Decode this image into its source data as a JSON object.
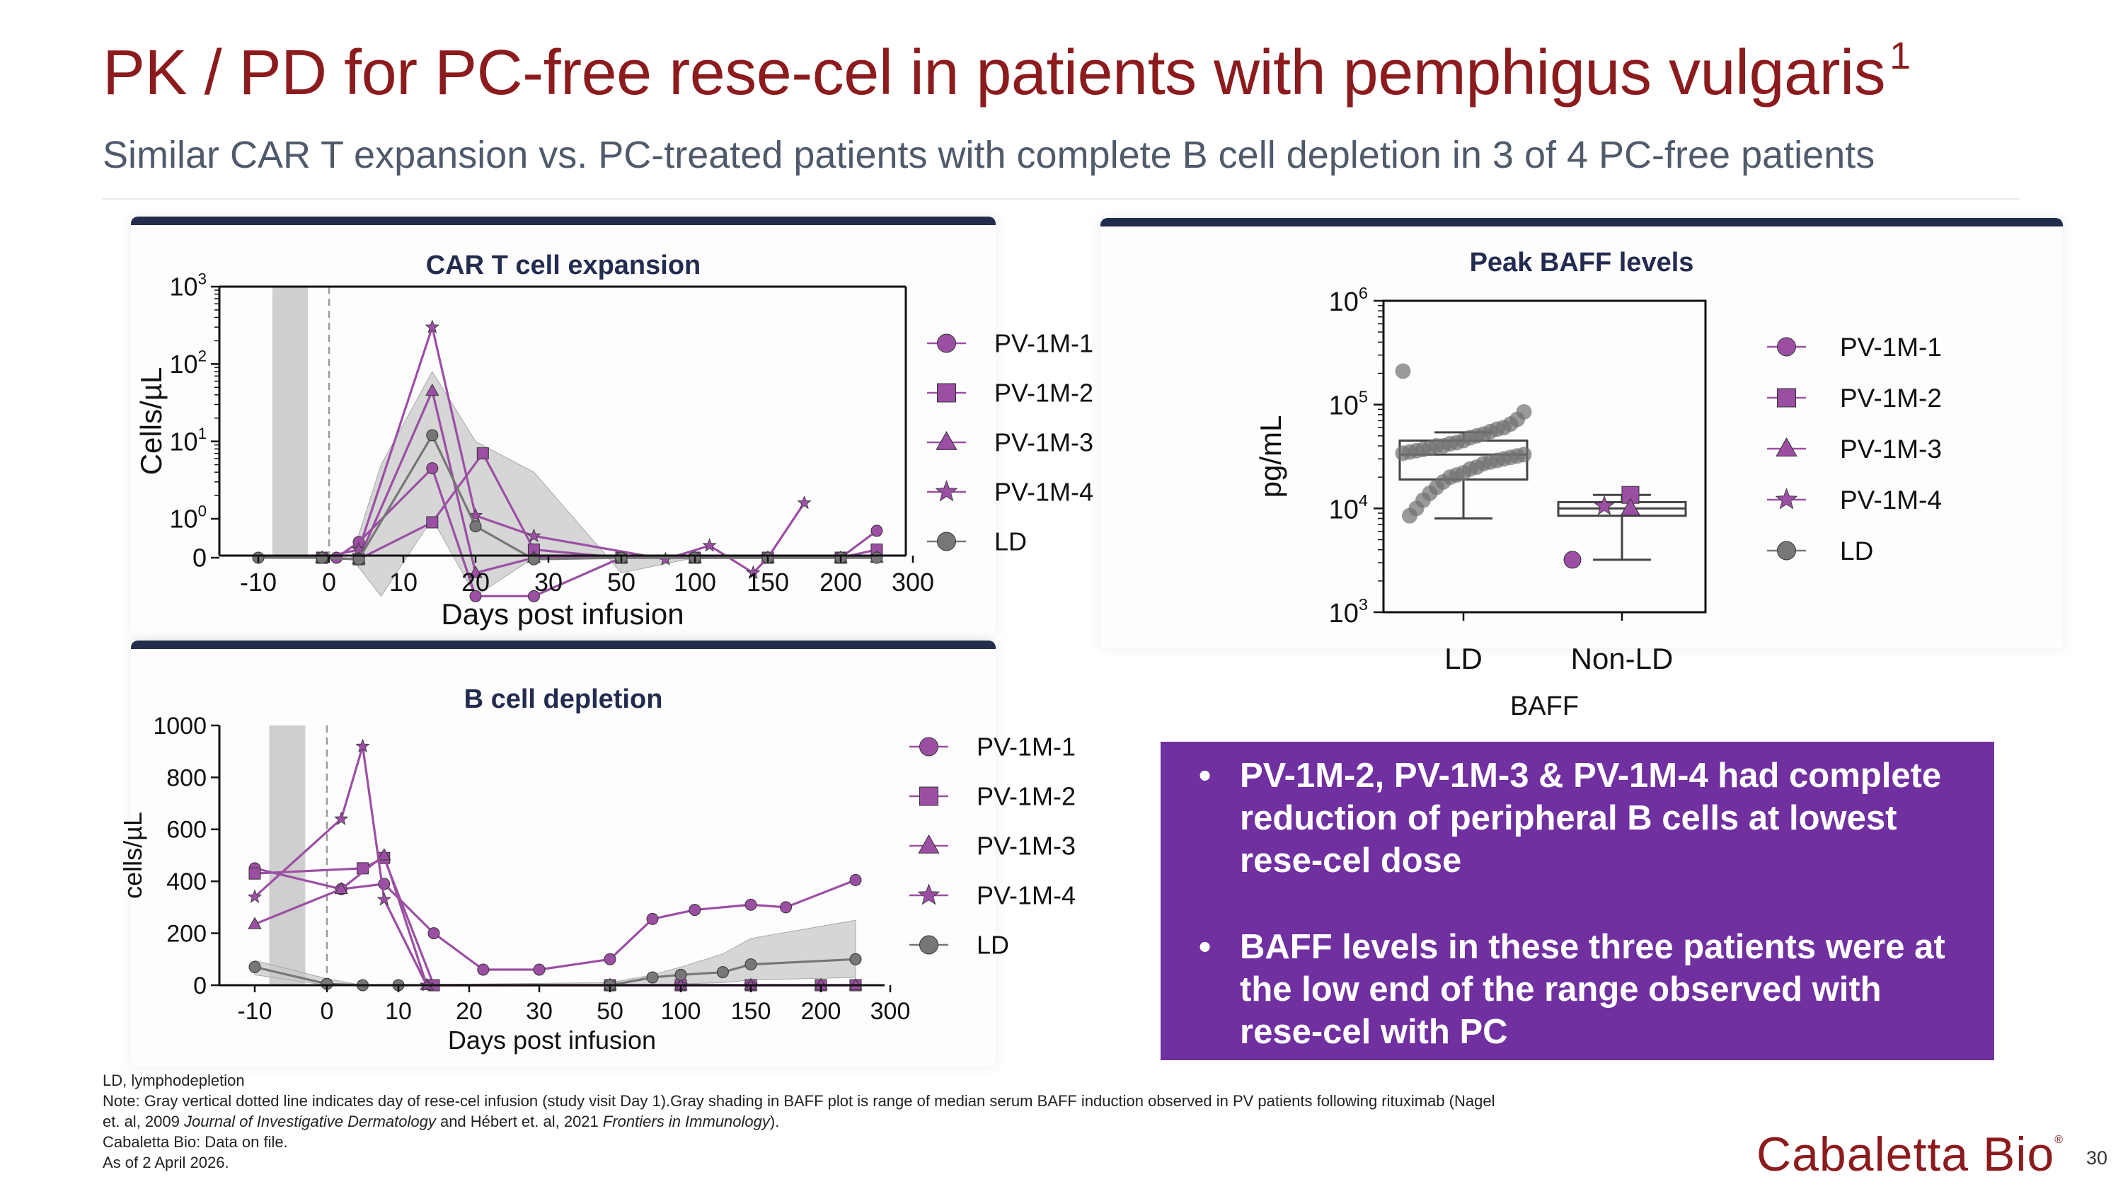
{
  "slide": {
    "title": "PK / PD for PC-free rese-cel in patients with pemphigus vulgaris",
    "title_superscript": "1",
    "subtitle": "Similar CAR T expansion vs. PC-treated patients with complete B cell depletion in 3 of 4 PC-free patients",
    "page_number": "30"
  },
  "logo": {
    "text": "Cabaletta Bio",
    "mark": "®"
  },
  "callout": {
    "bullet": "•",
    "points": [
      "PV-1M-2, PV-1M-3 & PV-1M-4 had complete reduction of peripheral B cells at lowest rese-cel dose",
      "BAFF levels in these three patients were at the low end of the range observed with rese-cel with PC"
    ]
  },
  "footnotes": {
    "line1": "LD, lymphodepletion",
    "line2": "Note: Gray vertical dotted line indicates day of rese-cel infusion (study visit Day 1).Gray shading in BAFF plot is range of median serum BAFF induction observed in PV patients following rituximab (Nagel",
    "line3_a": "et. al, 2009 ",
    "line3_b": "Journal of Investigative Dermatology",
    "line3_c": " and Hébert et. al, 2021 ",
    "line3_d": "Frontiers in Immunology",
    "line3_e": ").",
    "line4": "Cabaletta Bio: Data on file.",
    "line5": "As of 2 April 2026."
  },
  "colors": {
    "title": "#8c1b1e",
    "panel_border": "#222c4c",
    "callout": "#7030a0",
    "purple_series": "#9b4fa3",
    "ld_series": "#777777",
    "shade": "#c8c8c8"
  },
  "chart_data": [
    {
      "type": "line",
      "title": "CAR T cell expansion",
      "xlabel": "Days post infusion",
      "ylabel": "Cells/µL",
      "x_ticks": [
        "-10",
        "0",
        "10",
        "20",
        "30",
        "50",
        "100",
        "150",
        "200",
        "300"
      ],
      "y_ticks": [
        {
          "v": 0,
          "label": "0"
        },
        {
          "v": 1,
          "label": "10",
          "exp": "0"
        },
        {
          "v": 10,
          "label": "10",
          "exp": "1"
        },
        {
          "v": 100,
          "label": "10",
          "exp": "2"
        },
        {
          "v": 1000,
          "label": "10",
          "exp": "3"
        }
      ],
      "yscale": "log (0 shown at bottom)",
      "ylim": [
        0,
        1000
      ],
      "infusion_day": 0,
      "ld_window": [
        -8,
        -3
      ],
      "legend": [
        "PV-1M-1",
        "PV-1M-2",
        "PV-1M-3",
        "PV-1M-4",
        "LD"
      ],
      "series": [
        {
          "name": "PV-1M-1",
          "marker": "circle",
          "points": [
            [
              1,
              0
            ],
            [
              4,
              0.5
            ],
            [
              14,
              4.5
            ],
            [
              20,
              0.1
            ],
            [
              28,
              0.1
            ],
            [
              50,
              0
            ],
            [
              100,
              0
            ],
            [
              150,
              0
            ],
            [
              200,
              0
            ],
            [
              250,
              0.7
            ]
          ]
        },
        {
          "name": "PV-1M-2",
          "marker": "square",
          "points": [
            [
              -1,
              0
            ],
            [
              4,
              0.3
            ],
            [
              14,
              0.9
            ],
            [
              21,
              7
            ],
            [
              28,
              0.4
            ],
            [
              50,
              0
            ],
            [
              100,
              0
            ],
            [
              150,
              0
            ],
            [
              200,
              0
            ],
            [
              250,
              0.4
            ]
          ]
        },
        {
          "name": "PV-1M-3",
          "marker": "triangle",
          "points": [
            [
              -1,
              0
            ],
            [
              4,
              0.3
            ],
            [
              14,
              45
            ],
            [
              20,
              0.2
            ],
            [
              28,
              0
            ],
            [
              50,
              0
            ],
            [
              100,
              0
            ],
            [
              150,
              0
            ],
            [
              200,
              0
            ],
            [
              250,
              0
            ]
          ]
        },
        {
          "name": "PV-1M-4",
          "marker": "star",
          "points": [
            [
              -1,
              0
            ],
            [
              4,
              0.4
            ],
            [
              14,
              300
            ],
            [
              20,
              1.1
            ],
            [
              28,
              0.6
            ],
            [
              80,
              0.3
            ],
            [
              110,
              0.45
            ],
            [
              140,
              0.2
            ],
            [
              150,
              0
            ],
            [
              175,
              1.6
            ]
          ]
        },
        {
          "name": "LD",
          "marker": "circle",
          "points": [
            [
              -10,
              0
            ],
            [
              -1,
              0
            ],
            [
              4,
              0.3
            ],
            [
              14,
              12
            ],
            [
              20,
              0.8
            ],
            [
              28,
              0.3
            ],
            [
              50,
              0
            ],
            [
              100,
              0
            ],
            [
              150,
              0
            ],
            [
              200,
              0
            ],
            [
              250,
              0
            ]
          ]
        }
      ],
      "ld_range": {
        "upper": [
          [
            -1,
            0
          ],
          [
            3,
            0
          ],
          [
            7,
            5
          ],
          [
            14,
            80
          ],
          [
            20,
            10
          ],
          [
            28,
            4
          ],
          [
            50,
            0.2
          ],
          [
            100,
            0
          ],
          [
            150,
            0
          ],
          [
            250,
            0
          ]
        ],
        "lower": [
          [
            -1,
            0
          ],
          [
            3,
            0
          ],
          [
            7,
            0.1
          ],
          [
            14,
            1
          ],
          [
            20,
            0.1
          ],
          [
            28,
            0
          ],
          [
            50,
            0
          ],
          [
            100,
            0
          ],
          [
            150,
            0
          ],
          [
            250,
            0
          ]
        ]
      }
    },
    {
      "type": "box",
      "title": "Peak BAFF levels",
      "xlabel": "BAFF",
      "ylabel": "pg/mL",
      "categories": [
        "LD",
        "Non-LD"
      ],
      "y_ticks": [
        {
          "v": 1000,
          "label": "10",
          "exp": "3"
        },
        {
          "v": 10000,
          "label": "10",
          "exp": "4"
        },
        {
          "v": 100000,
          "label": "10",
          "exp": "5"
        },
        {
          "v": 1000000,
          "label": "10",
          "exp": "6"
        }
      ],
      "yscale": "log",
      "ylim": [
        1000,
        1000000
      ],
      "legend": [
        "PV-1M-1",
        "PV-1M-2",
        "PV-1M-3",
        "PV-1M-4",
        "LD"
      ],
      "boxes": [
        {
          "category": "LD",
          "min": 8000,
          "q1": 19000,
          "median": 33000,
          "q3": 45000,
          "max": 54000
        },
        {
          "category": "Non-LD",
          "min": 3200,
          "q1": 8500,
          "median": 10000,
          "q3": 11500,
          "max": 13500
        }
      ],
      "ld_points": [
        210000,
        85000,
        72000,
        65000,
        60000,
        58000,
        55000,
        52000,
        50000,
        48000,
        45000,
        43000,
        42000,
        40000,
        40000,
        38000,
        37000,
        36000,
        35000,
        34000,
        33000,
        32000,
        31000,
        30000,
        29000,
        28000,
        27000,
        25000,
        24000,
        22000,
        21000,
        20000,
        18000,
        16000,
        14000,
        12000,
        10000,
        8500
      ],
      "patients": [
        {
          "name": "PV-1M-1",
          "marker": "circle",
          "value": 3200
        },
        {
          "name": "PV-1M-2",
          "marker": "square",
          "value": 13500
        },
        {
          "name": "PV-1M-3",
          "marker": "triangle",
          "value": 10000
        },
        {
          "name": "PV-1M-4",
          "marker": "star",
          "value": 10500
        }
      ]
    },
    {
      "type": "line",
      "title": "B cell depletion",
      "xlabel": "Days post infusion",
      "ylabel": "cells/µL",
      "x_ticks": [
        "-10",
        "0",
        "10",
        "20",
        "30",
        "50",
        "100",
        "150",
        "200",
        "300"
      ],
      "y_ticks": [
        {
          "v": 0,
          "label": "0"
        },
        {
          "v": 200,
          "label": "200"
        },
        {
          "v": 400,
          "label": "400"
        },
        {
          "v": 600,
          "label": "600"
        },
        {
          "v": 800,
          "label": "800"
        },
        {
          "v": 1000,
          "label": "1000"
        }
      ],
      "ylim": [
        0,
        1000
      ],
      "infusion_day": 0,
      "ld_window": [
        -8,
        -3
      ],
      "legend": [
        "PV-1M-1",
        "PV-1M-2",
        "PV-1M-3",
        "PV-1M-4",
        "LD"
      ],
      "series": [
        {
          "name": "PV-1M-1",
          "marker": "circle",
          "points": [
            [
              -10,
              450
            ],
            [
              2,
              370
            ],
            [
              8,
              390
            ],
            [
              15,
              200
            ],
            [
              22,
              60
            ],
            [
              30,
              60
            ],
            [
              50,
              100
            ],
            [
              80,
              255
            ],
            [
              110,
              290
            ],
            [
              150,
              310
            ],
            [
              175,
              300
            ],
            [
              250,
              405
            ]
          ]
        },
        {
          "name": "PV-1M-2",
          "marker": "square",
          "points": [
            [
              -10,
              430
            ],
            [
              5,
              450
            ],
            [
              8,
              490
            ],
            [
              15,
              0
            ],
            [
              50,
              0
            ],
            [
              100,
              0
            ],
            [
              150,
              0
            ],
            [
              200,
              0
            ],
            [
              250,
              0
            ]
          ]
        },
        {
          "name": "PV-1M-3",
          "marker": "triangle",
          "points": [
            [
              -10,
              235
            ],
            [
              2,
              370
            ],
            [
              8,
              500
            ],
            [
              14,
              0
            ],
            [
              50,
              0
            ],
            [
              100,
              0
            ],
            [
              150,
              0
            ],
            [
              200,
              0
            ],
            [
              250,
              0
            ]
          ]
        },
        {
          "name": "PV-1M-4",
          "marker": "star",
          "points": [
            [
              -10,
              340
            ],
            [
              2,
              640
            ],
            [
              5,
              920
            ],
            [
              8,
              330
            ],
            [
              14,
              0
            ],
            [
              50,
              0
            ],
            [
              100,
              0
            ],
            [
              150,
              0
            ]
          ]
        },
        {
          "name": "LD",
          "marker": "circle",
          "points": [
            [
              -10,
              70
            ],
            [
              0,
              5
            ],
            [
              5,
              0
            ],
            [
              10,
              0
            ],
            [
              50,
              0
            ],
            [
              80,
              30
            ],
            [
              100,
              40
            ],
            [
              130,
              50
            ],
            [
              150,
              80
            ],
            [
              250,
              100
            ]
          ]
        }
      ],
      "ld_range": {
        "upper": [
          [
            -10,
            95
          ],
          [
            0,
            25
          ],
          [
            5,
            0
          ],
          [
            50,
            10
          ],
          [
            80,
            40
          ],
          [
            100,
            70
          ],
          [
            130,
            120
          ],
          [
            150,
            180
          ],
          [
            250,
            250
          ]
        ],
        "lower": [
          [
            -10,
            40
          ],
          [
            0,
            0
          ],
          [
            5,
            0
          ],
          [
            50,
            0
          ],
          [
            80,
            0
          ],
          [
            100,
            5
          ],
          [
            130,
            10
          ],
          [
            150,
            20
          ],
          [
            250,
            30
          ]
        ]
      }
    }
  ]
}
